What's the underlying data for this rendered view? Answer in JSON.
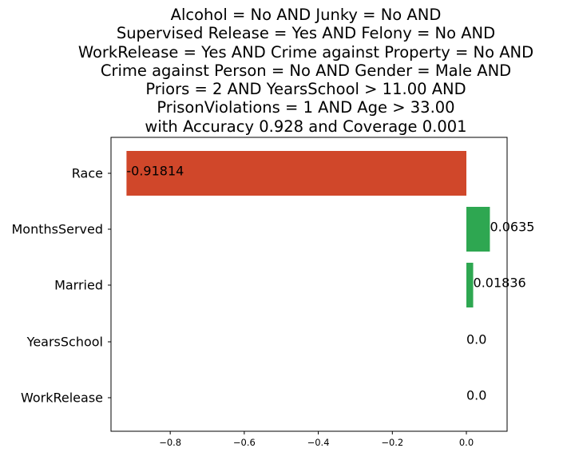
{
  "chart_data": {
    "type": "bar",
    "orientation": "horizontal",
    "title_lines": [
      "Alcohol = No AND Junky = No AND",
      "Supervised Release = Yes AND Felony = No AND",
      "WorkRelease = Yes AND Crime against Property = No AND",
      "Crime against Person = No AND Gender = Male AND",
      "Priors = 2 AND YearsSchool > 11.00 AND",
      "PrisonViolations = 1 AND Age > 33.00",
      "with Accuracy 0.928 and Coverage 0.001"
    ],
    "categories": [
      "Race",
      "MonthsServed",
      "Married",
      "YearsSchool",
      "WorkRelease"
    ],
    "values": [
      -0.91814,
      0.0635,
      0.01836,
      0.0,
      0.0
    ],
    "value_labels": [
      "-0.91814",
      "0.0635",
      "0.01836",
      "0.0",
      "0.0"
    ],
    "xlim": [
      -0.96,
      0.11
    ],
    "xticks": [
      -0.8,
      -0.6,
      -0.4,
      -0.2,
      0.0
    ],
    "xtick_labels": [
      "−0.8",
      "−0.6",
      "−0.4",
      "−0.2",
      "0.0"
    ],
    "xlabel": "",
    "ylabel": "",
    "grid": false,
    "colors": {
      "negative": "#d0472a",
      "positive": "#2ea751"
    }
  }
}
